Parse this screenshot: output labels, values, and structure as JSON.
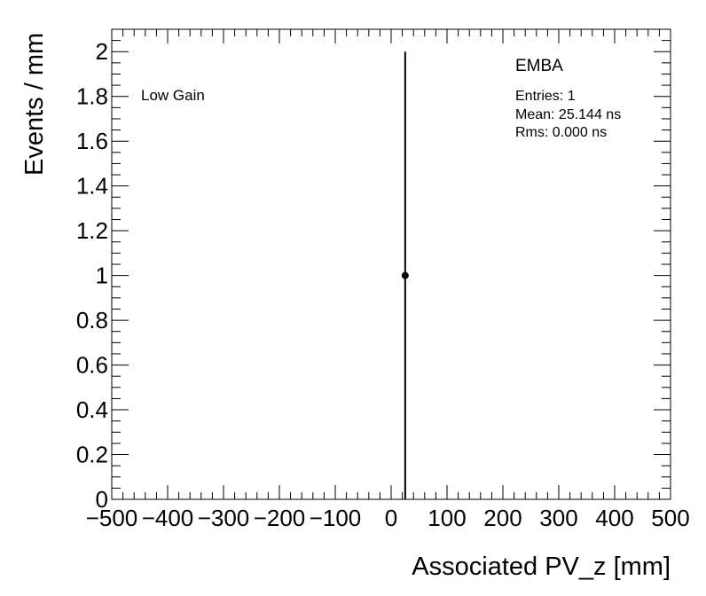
{
  "chart_data": {
    "type": "scatter",
    "xlabel": "Associated PV_z [mm]",
    "ylabel": "Events / mm",
    "xlim": [
      -500,
      500
    ],
    "ylim": [
      0,
      2.1
    ],
    "x_ticks": [
      -500,
      -400,
      -300,
      -200,
      -100,
      0,
      100,
      200,
      300,
      400,
      500
    ],
    "x_tick_labels": [
      "−500",
      "−400",
      "−300",
      "−200",
      "−100",
      "0",
      "100",
      "200",
      "300",
      "400",
      "500"
    ],
    "y_ticks": [
      0,
      0.2,
      0.4,
      0.6,
      0.8,
      1,
      1.2,
      1.4,
      1.6,
      1.8,
      2
    ],
    "y_tick_labels": [
      "0",
      "0.2",
      "0.4",
      "0.6",
      "0.8",
      "1",
      "1.2",
      "1.4",
      "1.6",
      "1.8",
      "2"
    ],
    "points": [
      {
        "x": 25.144,
        "y": 1,
        "err_low": 1,
        "err_high": 1
      }
    ],
    "grid": false,
    "annotations": {
      "region": "Low Gain",
      "partition": "EMBA",
      "entries": "Entries: 1",
      "mean": "Mean: 25.144 ns",
      "rms": "Rms: 0.000 ns"
    }
  }
}
